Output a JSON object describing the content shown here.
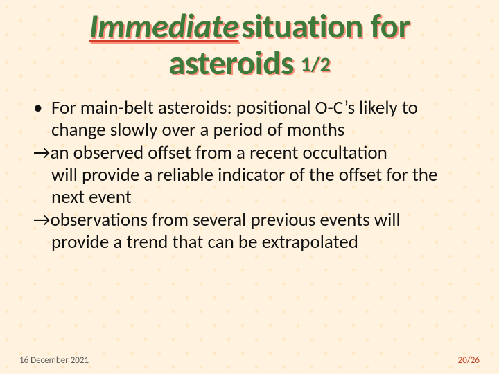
{
  "colors": {
    "background": "#fff3e0",
    "title_text": "#3e7a3c",
    "title_shadow": "rgba(255,60,40,0.55)",
    "underline": "#d23a2a",
    "body_text": "#111111",
    "footer_date": "#5a5a5a",
    "footer_page": "#c44a2e"
  },
  "typography": {
    "family": "Calibri",
    "title_size_pt": 36,
    "pagefrac_size_pt": 22,
    "body_size_pt": 20,
    "footer_size_pt": 10
  },
  "title": {
    "w1": "Immediate",
    "w2": "situation for",
    "w3": "asteroids",
    "pagefrac": "1/2"
  },
  "body": {
    "bullet_mark": "•",
    "arrow_mark": "→",
    "item1": "For main-belt asteroids: positional O-C’s likely to change slowly over a period of months",
    "arrow1_lead": "an observed offset from a recent occultation",
    "arrow1_cont": "will provide a reliable indicator of the offset for the next event",
    "arrow2_lead": "observations from several previous events will",
    "arrow2_cont": "provide a trend that can be extrapolated"
  },
  "footer": {
    "date": "16 December 2021",
    "page": "20/26"
  }
}
